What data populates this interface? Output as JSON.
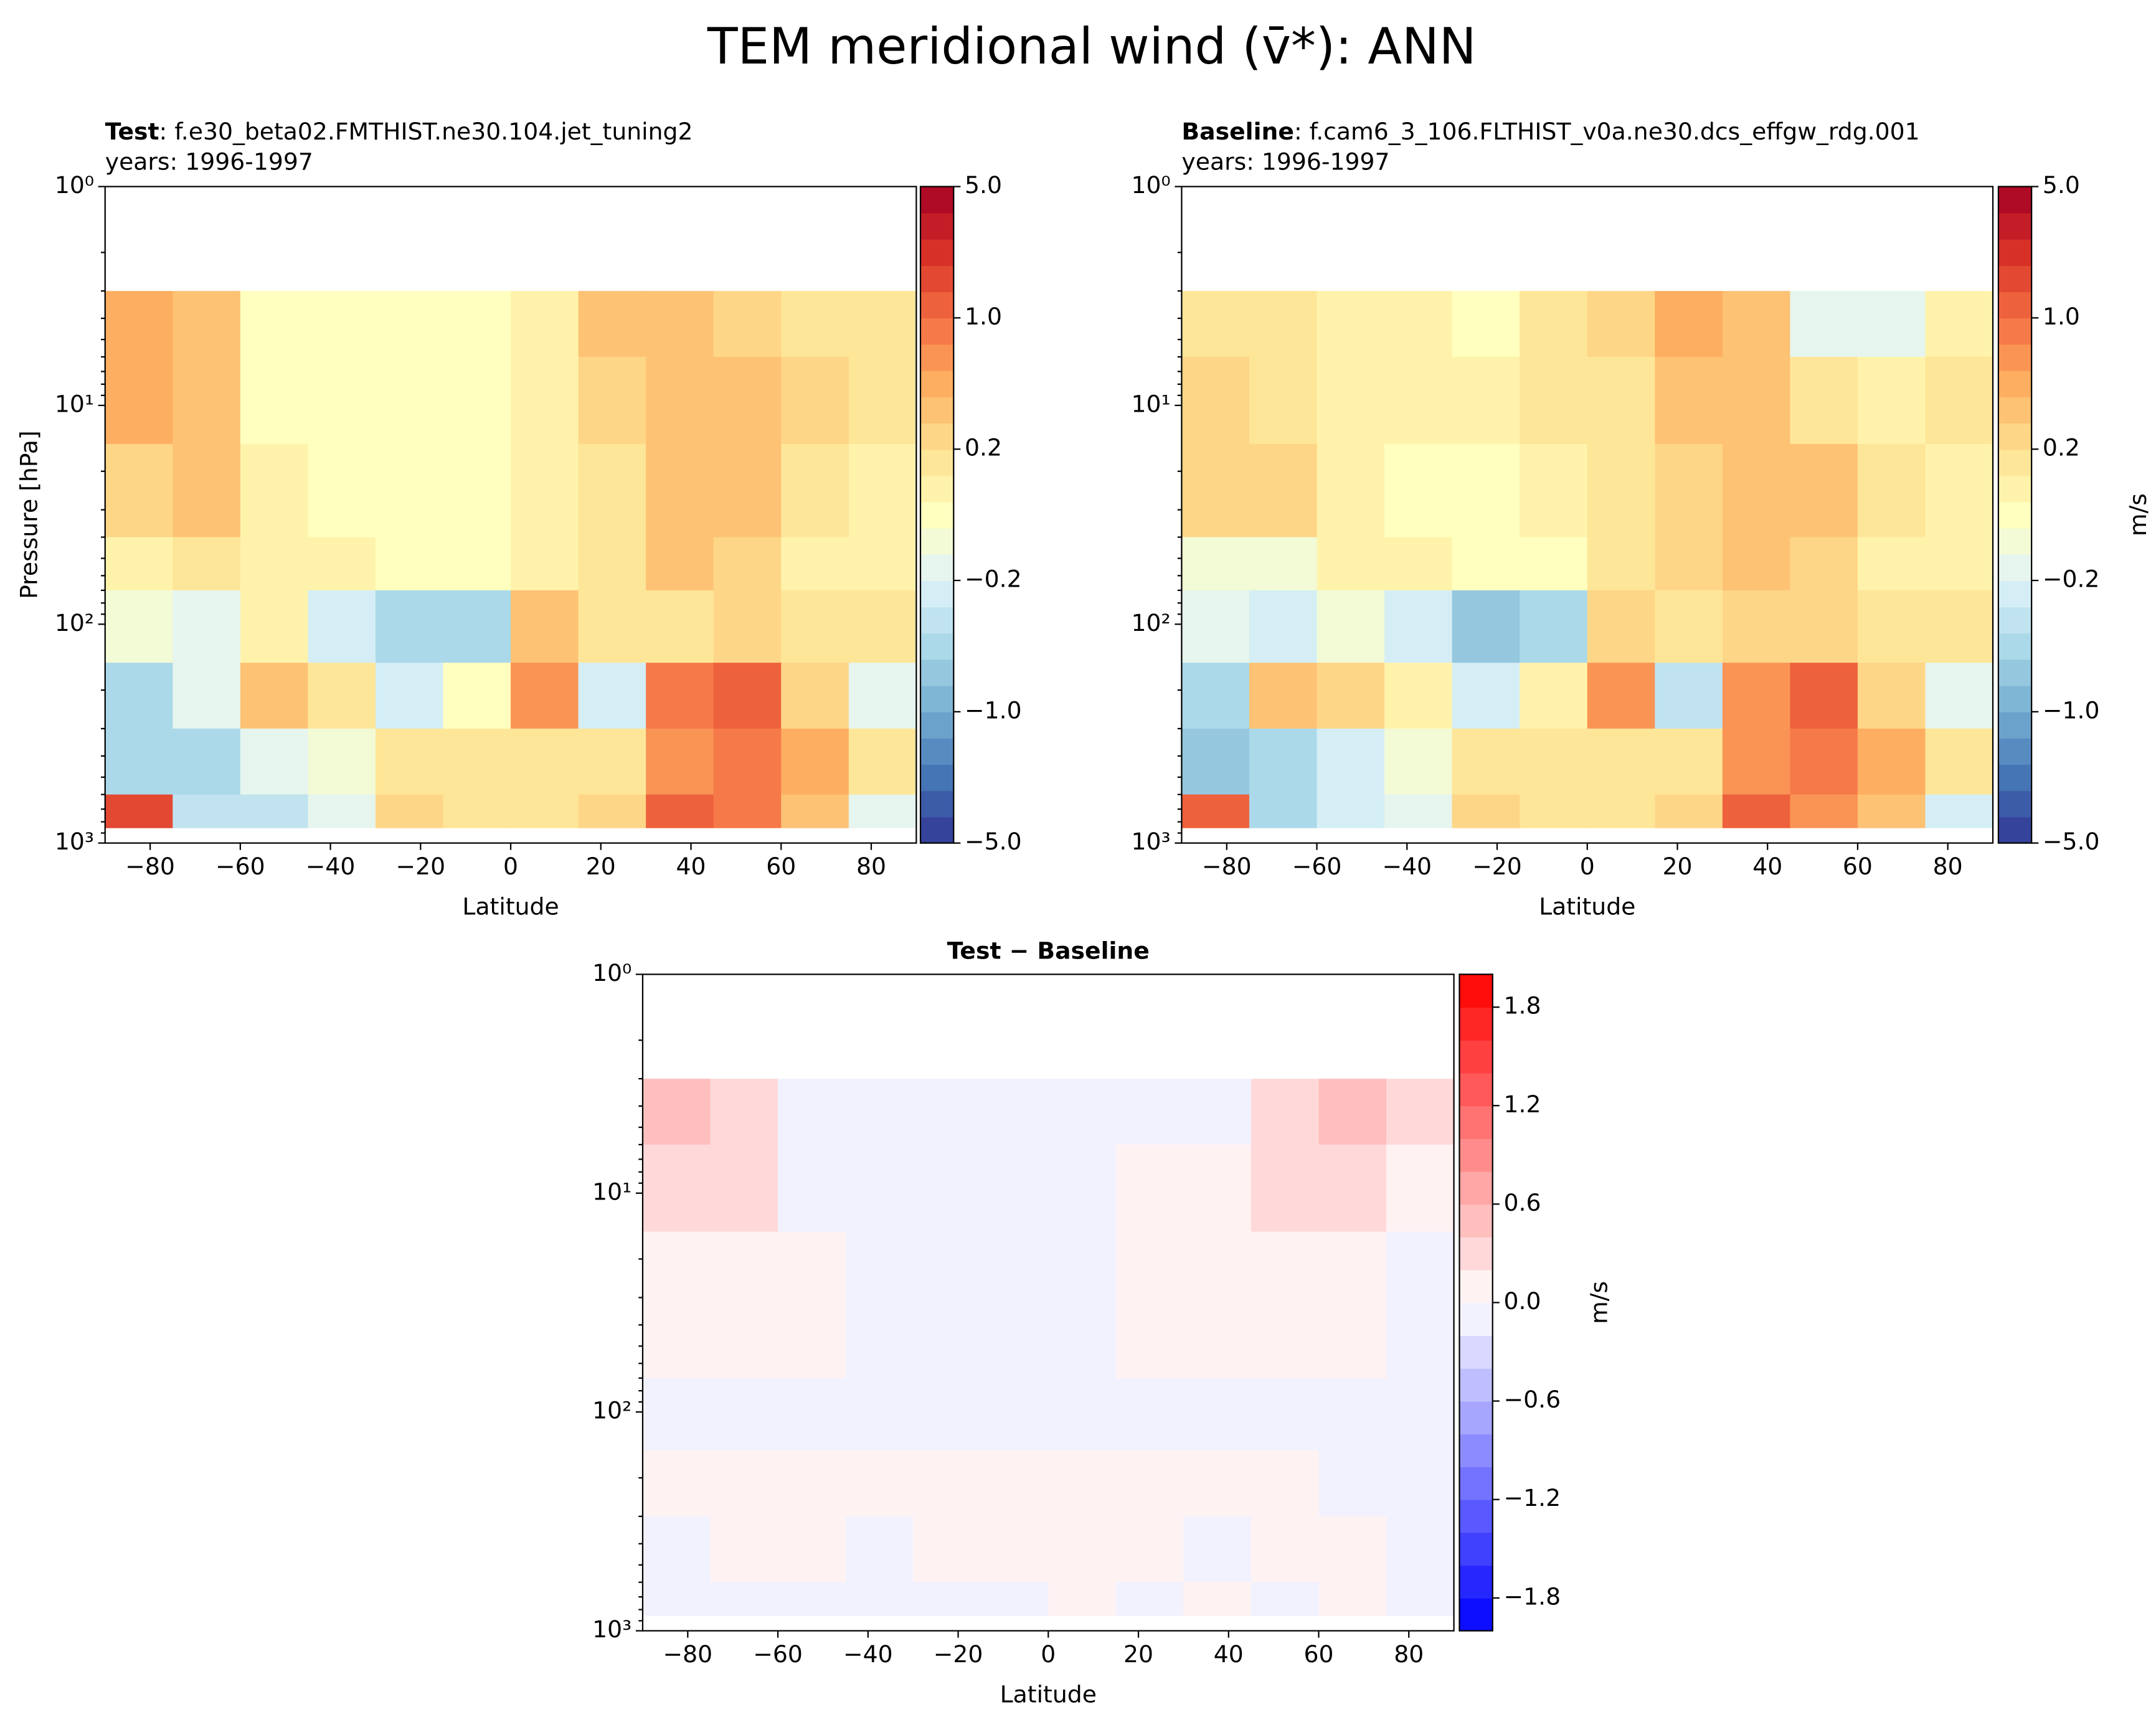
{
  "title": "TEM meridional wind (v̄*): ANN",
  "chart_data": [
    {
      "type": "contourf",
      "case_label": "Test",
      "case_name": ": f.e30_beta02.FMTHIST.ne30.104.jet_tuning2",
      "years": "years: 1996-1997",
      "x_label": "Latitude",
      "y_label": "Pressure [hPa]",
      "log_y": true,
      "xlim": [
        -90,
        90
      ],
      "xticks": [
        {
          "value": -80,
          "label": "−80"
        },
        {
          "value": -60,
          "label": "−60"
        },
        {
          "value": -40,
          "label": "−40"
        },
        {
          "value": -20,
          "label": "−20"
        },
        0,
        20,
        40,
        60,
        80
      ],
      "ylim": [
        1000,
        1
      ],
      "yticks": [
        {
          "value": 1,
          "label": "10⁰"
        },
        {
          "value": 10,
          "label": "10¹"
        },
        {
          "value": 100,
          "label": "10²"
        },
        {
          "value": 1000,
          "label": "10³"
        }
      ],
      "x": [
        -90,
        -75,
        -60,
        -45,
        -30,
        -15,
        0,
        15,
        30,
        45,
        60,
        75,
        90
      ],
      "y": [
        3,
        6,
        15,
        40,
        70,
        150,
        300,
        600,
        850
      ],
      "values": [
        [
          0.4,
          0.3,
          -0.05,
          -0.05,
          -0.05,
          0,
          0.05,
          0.3,
          0.3,
          0.2,
          0.15,
          0.15
        ],
        [
          0.4,
          0.3,
          0,
          -0.05,
          -0.05,
          0,
          0.05,
          0.2,
          0.3,
          0.3,
          0.2,
          0.1
        ],
        [
          0.2,
          0.3,
          0.05,
          0,
          -0.05,
          0,
          0.05,
          0.1,
          0.3,
          0.3,
          0.1,
          0.05
        ],
        [
          0.05,
          0.1,
          0.05,
          0.05,
          -0.05,
          -0.05,
          0.05,
          0.1,
          0.3,
          0.2,
          0.05,
          0.05
        ],
        [
          -0.1,
          -0.15,
          0.05,
          -0.3,
          -0.6,
          -0.6,
          0.3,
          0.1,
          0.1,
          0.2,
          0.1,
          0.1
        ],
        [
          -0.6,
          -0.2,
          0.3,
          0.1,
          -0.3,
          0,
          0.6,
          -0.3,
          0.8,
          1,
          0.2,
          -0.2
        ],
        [
          -0.6,
          -0.6,
          -0.2,
          -0.1,
          0.1,
          0.1,
          0.1,
          0.1,
          0.6,
          0.8,
          0.4,
          0.1
        ],
        [
          1.5,
          -0.4,
          -0.4,
          -0.2,
          0.2,
          0.1,
          0.1,
          0.2,
          1,
          0.8,
          0.3,
          -0.2
        ]
      ],
      "colorbar": {
        "colormap": "RdYlBu_r",
        "levels": [
          -5,
          -4,
          -3,
          -2,
          -1.5,
          -1,
          -0.8,
          -0.6,
          -0.4,
          -0.3,
          -0.2,
          -0.1,
          -0.05,
          0.05,
          0.1,
          0.2,
          0.3,
          0.4,
          0.6,
          0.8,
          1,
          1.5,
          2,
          3,
          4,
          5
        ],
        "ticks": [
          {
            "value": 5,
            "label": "5.0"
          },
          {
            "value": 1,
            "label": "1.0"
          },
          0.2,
          {
            "value": -0.2,
            "label": "−0.2"
          },
          {
            "value": -1,
            "label": "−1.0"
          },
          {
            "value": -5,
            "label": "−5.0"
          }
        ]
      }
    },
    {
      "type": "contourf",
      "case_label": "Baseline",
      "case_name": ": f.cam6_3_106.FLTHIST_v0a.ne30.dcs_effgw_rdg.001",
      "years": "years: 1996-1997",
      "x_label": "Latitude",
      "log_y": true,
      "xlim": [
        -90,
        90
      ],
      "xticks": [
        {
          "value": -80,
          "label": "−80"
        },
        {
          "value": -60,
          "label": "−60"
        },
        {
          "value": -40,
          "label": "−40"
        },
        {
          "value": -20,
          "label": "−20"
        },
        0,
        20,
        40,
        60,
        80
      ],
      "ylim": [
        1000,
        1
      ],
      "yticks": [
        {
          "value": 1,
          "label": "10⁰"
        },
        {
          "value": 10,
          "label": "10¹"
        },
        {
          "value": 100,
          "label": "10²"
        },
        {
          "value": 1000,
          "label": "10³"
        }
      ],
      "x": [
        -90,
        -75,
        -60,
        -45,
        -30,
        -15,
        0,
        15,
        30,
        45,
        60,
        75,
        90
      ],
      "y": [
        3,
        6,
        15,
        40,
        70,
        150,
        300,
        600,
        850
      ],
      "values": [
        [
          0.1,
          0.1,
          0.05,
          0.05,
          -0.05,
          0.1,
          0.2,
          0.5,
          0.3,
          -0.15,
          -0.2,
          0.05
        ],
        [
          0.2,
          0.1,
          0.05,
          0.05,
          0.05,
          0.1,
          0.1,
          0.3,
          0.3,
          0.1,
          0.05,
          0.1
        ],
        [
          0.2,
          0.2,
          0.05,
          0,
          -0.05,
          0.05,
          0.1,
          0.2,
          0.3,
          0.3,
          0.1,
          0.05
        ],
        [
          -0.1,
          -0.1,
          0.05,
          0.05,
          -0.05,
          0,
          0.1,
          0.2,
          0.3,
          0.2,
          0.05,
          0.05
        ],
        [
          -0.2,
          -0.3,
          -0.1,
          -0.3,
          -0.7,
          -0.5,
          0.2,
          0.1,
          0.2,
          0.2,
          0.1,
          0.1
        ],
        [
          -0.6,
          0.3,
          0.2,
          0.05,
          -0.3,
          0.05,
          0.6,
          -0.4,
          0.6,
          1,
          0.2,
          -0.2
        ],
        [
          -0.8,
          -0.6,
          -0.3,
          -0.1,
          0.1,
          0.1,
          0.1,
          0.1,
          0.6,
          0.8,
          0.4,
          0.1
        ],
        [
          1,
          -0.5,
          -0.3,
          -0.2,
          0.2,
          0.1,
          0.1,
          0.2,
          1,
          0.6,
          0.3,
          -0.3
        ]
      ],
      "colorbar": {
        "colormap": "RdYlBu_r",
        "label": "m/s",
        "levels": [
          -5,
          -4,
          -3,
          -2,
          -1.5,
          -1,
          -0.8,
          -0.6,
          -0.4,
          -0.3,
          -0.2,
          -0.1,
          -0.05,
          0.05,
          0.1,
          0.2,
          0.3,
          0.4,
          0.6,
          0.8,
          1,
          1.5,
          2,
          3,
          4,
          5
        ],
        "ticks": [
          {
            "value": 5,
            "label": "5.0"
          },
          {
            "value": 1,
            "label": "1.0"
          },
          0.2,
          {
            "value": -0.2,
            "label": "−0.2"
          },
          {
            "value": -1,
            "label": "−1.0"
          },
          {
            "value": -5,
            "label": "−5.0"
          }
        ]
      }
    },
    {
      "type": "contourf",
      "title": "Test − Baseline",
      "x_label": "Latitude",
      "log_y": true,
      "xlim": [
        -90,
        90
      ],
      "xticks": [
        {
          "value": -80,
          "label": "−80"
        },
        {
          "value": -60,
          "label": "−60"
        },
        {
          "value": -40,
          "label": "−40"
        },
        {
          "value": -20,
          "label": "−20"
        },
        0,
        20,
        40,
        60,
        80
      ],
      "ylim": [
        1000,
        1
      ],
      "yticks": [
        {
          "value": 1,
          "label": "10⁰"
        },
        {
          "value": 10,
          "label": "10¹"
        },
        {
          "value": 100,
          "label": "10²"
        },
        {
          "value": 1000,
          "label": "10³"
        }
      ],
      "x": [
        -90,
        -75,
        -60,
        -45,
        -30,
        -15,
        0,
        15,
        30,
        45,
        60,
        75,
        90
      ],
      "y": [
        3,
        6,
        15,
        40,
        70,
        150,
        300,
        600,
        850
      ],
      "values": [
        [
          0.4,
          0.2,
          -0.1,
          -0.05,
          -0.05,
          -0.1,
          -0.05,
          -0.1,
          -0.05,
          0.3,
          0.5,
          0.2
        ],
        [
          0.3,
          0.2,
          -0.05,
          -0.05,
          -0.05,
          -0.05,
          -0.05,
          0.05,
          0.05,
          0.2,
          0.2,
          0.1
        ],
        [
          0.05,
          0.05,
          0.05,
          -0.05,
          -0.05,
          -0.05,
          -0.05,
          0.05,
          0.05,
          0.05,
          0.05,
          -0.05
        ],
        [
          0.05,
          0.05,
          0.05,
          -0.05,
          -0.05,
          -0.05,
          -0.05,
          0.05,
          0.05,
          0.05,
          0.05,
          -0.05
        ],
        [
          -0.05,
          -0.05,
          -0.05,
          -0.05,
          -0.05,
          -0.05,
          -0.05,
          -0.05,
          -0.05,
          -0.05,
          -0.05,
          -0.05
        ],
        [
          0.05,
          0.05,
          0.1,
          0.1,
          0.1,
          0.05,
          0.1,
          0.05,
          0.05,
          0.05,
          -0.05,
          -0.05
        ],
        [
          -0.05,
          0.05,
          0.05,
          -0.05,
          0.05,
          0.05,
          0.05,
          0.05,
          -0.05,
          0.05,
          0.05,
          -0.05
        ],
        [
          -0.05,
          -0.1,
          -0.2,
          -0.1,
          -0.05,
          -0.05,
          0.05,
          -0.05,
          0.05,
          -0.05,
          0.05,
          -0.05
        ]
      ],
      "colorbar": {
        "colormap": "bwr",
        "label": "m/s",
        "levels": [
          -2,
          -1.8,
          -1.6,
          -1.4,
          -1.2,
          -1,
          -0.8,
          -0.6,
          -0.4,
          -0.2,
          0,
          0.2,
          0.4,
          0.6,
          0.8,
          1,
          1.2,
          1.4,
          1.6,
          1.8,
          2
        ],
        "ticks": [
          1.8,
          1.2,
          0.6,
          {
            "value": 0,
            "label": "0.0"
          },
          {
            "value": -0.6,
            "label": "−0.6"
          },
          {
            "value": -1.2,
            "label": "−1.2"
          },
          {
            "value": -1.8,
            "label": "−1.8"
          }
        ]
      }
    }
  ]
}
